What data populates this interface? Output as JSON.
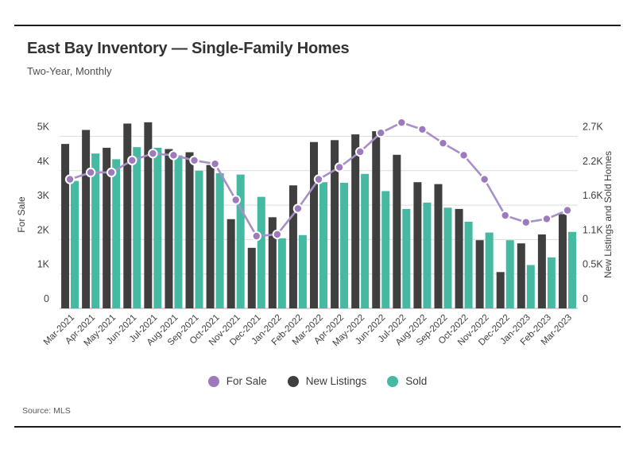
{
  "header": {
    "title": "East Bay Inventory — Single-Family Homes",
    "subtitle": "Two-Year, Monthly"
  },
  "source": "Source: MLS",
  "axes": {
    "left_title": "For Sale",
    "right_title": "New Listings and Sold Homes",
    "left_ticks": [
      "0",
      "1K",
      "2K",
      "3K",
      "4K",
      "5K"
    ],
    "right_ticks": [
      "0",
      "0.5K",
      "1.1K",
      "1.6K",
      "2.2K",
      "2.7K"
    ]
  },
  "legend": [
    {
      "label": "For Sale",
      "color": "#9d7abc"
    },
    {
      "label": "New Listings",
      "color": "#3f3f3f"
    },
    {
      "label": "Sold",
      "color": "#45b9a2"
    }
  ],
  "colors": {
    "line": "#a98fc8",
    "point_fill": "#9d7abc",
    "point_ring": "#ffffff",
    "bar_dark": "#3f3f3f",
    "bar_teal": "#45b9a2",
    "grid": "#dcdcdc",
    "baseline": "#c8c8c8",
    "tick_text": "#3e3e3e"
  },
  "chart_data": {
    "type": "combo-bar-line",
    "title": "East Bay Inventory — Single-Family Homes",
    "subtitle": "Two-Year, Monthly",
    "categories": [
      "Mar-2021",
      "Apr-2021",
      "May-2021",
      "Jun-2021",
      "Jul-2021",
      "Aug-2021",
      "Sep-2021",
      "Oct-2021",
      "Nov-2021",
      "Dec-2021",
      "Jan-2022",
      "Feb-2022",
      "Mar-2022",
      "Apr-2022",
      "May-2022",
      "Jun-2022",
      "Jul-2022",
      "Aug-2022",
      "Sep-2022",
      "Oct-2022",
      "Nov-2022",
      "Dec-2022",
      "Jan-2023",
      "Feb-2023",
      "Mar-2023"
    ],
    "series": [
      {
        "name": "For Sale",
        "mark": "line",
        "axis": "left",
        "color": "#9d7abc",
        "values": [
          3750,
          3950,
          3950,
          4300,
          4500,
          4450,
          4300,
          4200,
          3150,
          2100,
          2150,
          2900,
          3750,
          4100,
          4550,
          5100,
          5400,
          5200,
          4800,
          4450,
          3750,
          2700,
          2500,
          2600,
          2850
        ]
      },
      {
        "name": "New Listings",
        "mark": "bar",
        "axis": "right",
        "color": "#3f3f3f",
        "values": [
          2580,
          2800,
          2520,
          2900,
          2920,
          2500,
          2450,
          2250,
          1400,
          950,
          1430,
          1930,
          2610,
          2640,
          2730,
          2780,
          2410,
          1980,
          1950,
          1560,
          1070,
          570,
          1020,
          1160,
          1480
        ]
      },
      {
        "name": "Sold",
        "mark": "bar",
        "axis": "right",
        "color": "#45b9a2",
        "values": [
          2000,
          2430,
          2340,
          2530,
          2520,
          2400,
          2160,
          2120,
          2100,
          1750,
          1100,
          1150,
          1980,
          1970,
          2110,
          1840,
          1560,
          1660,
          1580,
          1360,
          1190,
          1070,
          680,
          800,
          1200
        ]
      }
    ],
    "left_axis": {
      "title": "For Sale",
      "ticks": [
        0,
        1000,
        2000,
        3000,
        4000,
        5000
      ],
      "range": [
        0,
        5550
      ]
    },
    "right_axis": {
      "title": "New Listings and Sold Homes",
      "ticks": [
        0,
        500,
        1100,
        1600,
        2200,
        2700
      ],
      "range": [
        0,
        2997
      ]
    },
    "axis_alignment": "right 2.7K tick aligns with left 5K gridline",
    "grid": true,
    "legend_position": "bottom"
  }
}
